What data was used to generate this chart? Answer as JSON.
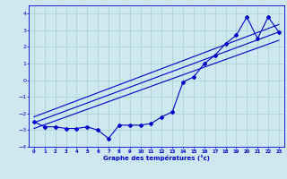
{
  "temps": [
    -2.5,
    -2.8,
    -2.8,
    -2.9,
    -2.9,
    -2.8,
    -3.0,
    -3.5,
    -2.7,
    -2.7,
    -2.7,
    -2.6,
    -2.2,
    -1.9,
    -0.1,
    0.2,
    1.0,
    1.5,
    2.2,
    2.7,
    3.8,
    2.5,
    3.8,
    2.9
  ],
  "x_values": [
    0,
    1,
    2,
    3,
    4,
    5,
    6,
    7,
    8,
    9,
    10,
    11,
    12,
    13,
    14,
    15,
    16,
    17,
    18,
    19,
    20,
    21,
    22,
    23
  ],
  "line1_x": [
    0,
    23
  ],
  "line1_y": [
    -2.55,
    2.9
  ],
  "line2_x": [
    0,
    23
  ],
  "line2_y": [
    -2.9,
    2.4
  ],
  "line3_x": [
    0,
    23
  ],
  "line3_y": [
    -2.2,
    3.35
  ],
  "xlabel": "Graphe des températures (°c)",
  "ylim": [
    -4,
    4.5
  ],
  "xlim": [
    -0.5,
    23.5
  ],
  "bg_color": "#cde8f0",
  "line_color": "#0000cc",
  "grid_color": "#aacccc",
  "tick_color": "#0000cc"
}
